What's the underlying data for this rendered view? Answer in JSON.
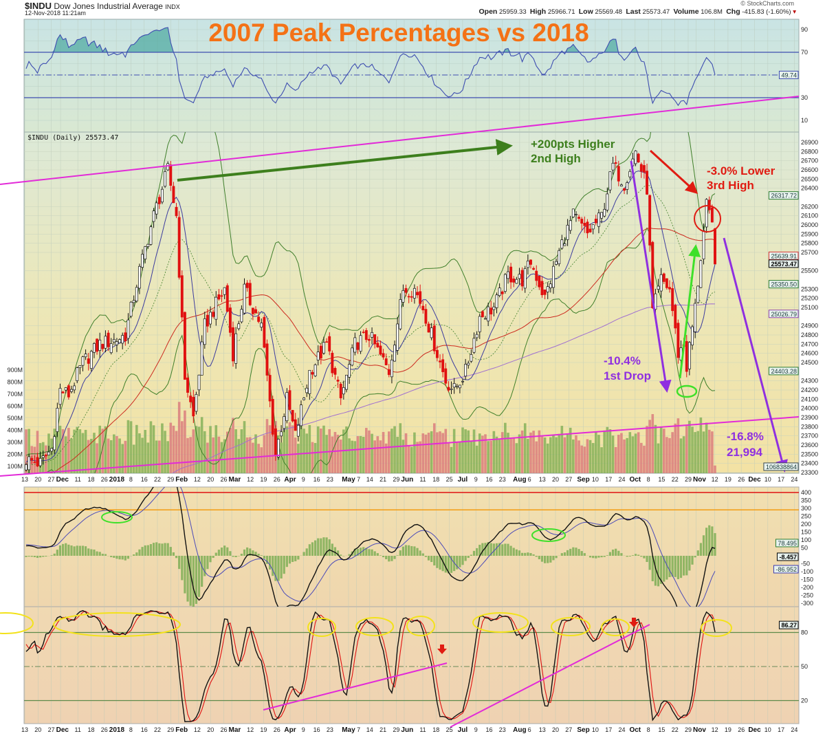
{
  "header": {
    "symbol": "$INDU",
    "name": "Dow Jones Industrial Average",
    "exchange": "INDX",
    "timestamp": "12-Nov-2018 11:21am",
    "watermark": "© StockCharts.com",
    "quote": {
      "open_label": "Open",
      "open": "25959.33",
      "high_label": "High",
      "high": "25966.71",
      "low_label": "Low",
      "low": "25569.48",
      "last_label": "Last",
      "last": "25573.47",
      "volume_label": "Volume",
      "volume": "106.8M",
      "chg_label": "Chg",
      "chg": "-415.83 (-1.60%)"
    }
  },
  "chart_data": {
    "type": "candlestick",
    "title": "2007 Peak Percentages vs 2018",
    "price_legend": "$INDU (Daily) 25573.47",
    "colors": {
      "title": "#f47216",
      "up_volume": "#7fae55",
      "down_volume": "#d9777a",
      "bands": "#3f7f2a",
      "ma_short": "#3b3b9e",
      "ma50": "#cc2a1f",
      "ma200": "#a070d0",
      "channel": "#e22ad8",
      "annotation_green": "#3d7f1d",
      "annotation_red": "#e01b12",
      "annotation_purple": "#8f2fe0"
    },
    "price": {
      "ylim": [
        23300,
        26900
      ],
      "last_bar": {
        "open": 25959.33,
        "high": 25966.71,
        "low": 25569.48,
        "close": 25573.47
      },
      "close_anchors": [
        [
          0,
          23440
        ],
        [
          5,
          23400
        ],
        [
          9,
          23560
        ],
        [
          12,
          24200
        ],
        [
          15,
          24150
        ],
        [
          20,
          24500
        ],
        [
          26,
          24700
        ],
        [
          32,
          24750
        ],
        [
          35,
          24800
        ],
        [
          40,
          25500
        ],
        [
          45,
          26100
        ],
        [
          50,
          26600
        ],
        [
          53,
          26100
        ],
        [
          54,
          25500
        ],
        [
          56,
          24350
        ],
        [
          59,
          23900
        ],
        [
          63,
          24900
        ],
        [
          70,
          25300
        ],
        [
          73,
          24600
        ],
        [
          77,
          25300
        ],
        [
          83,
          24900
        ],
        [
          88,
          23500
        ],
        [
          92,
          24100
        ],
        [
          95,
          23700
        ],
        [
          100,
          24400
        ],
        [
          106,
          24700
        ],
        [
          111,
          24100
        ],
        [
          116,
          24700
        ],
        [
          121,
          24800
        ],
        [
          128,
          24400
        ],
        [
          133,
          25300
        ],
        [
          137,
          25300
        ],
        [
          140,
          25100
        ],
        [
          148,
          24300
        ],
        [
          151,
          24200
        ],
        [
          155,
          24400
        ],
        [
          160,
          25000
        ],
        [
          165,
          25100
        ],
        [
          170,
          25450
        ],
        [
          175,
          25400
        ],
        [
          178,
          25600
        ],
        [
          183,
          25200
        ],
        [
          189,
          25800
        ],
        [
          193,
          26100
        ],
        [
          198,
          25900
        ],
        [
          203,
          26100
        ],
        [
          207,
          26650
        ],
        [
          211,
          26450
        ],
        [
          215,
          26800
        ],
        [
          219,
          26400
        ],
        [
          221,
          25050
        ],
        [
          224,
          25400
        ],
        [
          227,
          25300
        ],
        [
          230,
          24600
        ],
        [
          232,
          24690
        ],
        [
          233,
          24450
        ],
        [
          236,
          25100
        ],
        [
          240,
          26200
        ],
        [
          242,
          25990
        ],
        [
          243,
          25573.47
        ]
      ],
      "ticks": [
        26900,
        26800,
        26700,
        26600,
        26500,
        26400,
        26200,
        26100,
        26000,
        25900,
        25800,
        25700,
        25500,
        25300,
        25200,
        25100,
        24900,
        24800,
        24700,
        24600,
        24500,
        24300,
        24200,
        24100,
        24000,
        23900,
        23800,
        23700,
        23600,
        23500,
        23400,
        23300
      ],
      "badges": [
        {
          "label": "26317.72",
          "value": 26317.72,
          "color": "#2e7d32"
        },
        {
          "label": "25639.91",
          "value": 25660,
          "color": "#d32f2f"
        },
        {
          "label": "25573.47",
          "value": 25573.47,
          "color": "#000000"
        },
        {
          "label": "25350.50",
          "value": 25350.5,
          "color": "#2e7d32"
        },
        {
          "label": "25026.79",
          "value": 25026.79,
          "color": "#8e44ad"
        },
        {
          "label": "24403.28",
          "value": 24403.28,
          "color": "#2e7d32"
        },
        {
          "label": "106838864",
          "value": 23360,
          "color": "#37474f"
        }
      ]
    },
    "volume": {
      "ticks": [
        "900M",
        "800M",
        "700M",
        "600M",
        "500M",
        "400M",
        "300M",
        "200M",
        "100M"
      ],
      "tick_values": [
        900,
        800,
        700,
        600,
        500,
        400,
        300,
        200,
        100
      ],
      "last": 106.8
    },
    "rsi": {
      "period": 14,
      "levels": [
        70,
        30
      ],
      "mid": 50,
      "ticks": [
        90,
        70,
        30,
        10
      ],
      "badge": "49.74",
      "badge_value": 49.74
    },
    "macd": {
      "params": [
        12,
        26,
        9
      ],
      "ticks": [
        400,
        350,
        300,
        250,
        200,
        150,
        100,
        50,
        -50,
        -100,
        -150,
        -200,
        -250,
        -300
      ],
      "lines": [
        400,
        290
      ],
      "badges": [
        {
          "label": "78.495",
          "value": 78.5,
          "color": "#2e7d32"
        },
        {
          "label": "-8.457",
          "value": -8.5,
          "color": "#000000"
        },
        {
          "label": "-86.952",
          "value": -87,
          "color": "#3b3bb0"
        }
      ]
    },
    "stochastic": {
      "params": [
        14,
        3
      ],
      "levels": [
        80,
        20
      ],
      "mid": 50,
      "ticks": [
        80,
        50,
        20
      ],
      "badge": "86.27",
      "badge_value": 86.27
    },
    "x_ticks": [
      {
        "label": "13",
        "week": 0
      },
      {
        "label": "20",
        "week": 1
      },
      {
        "label": "27",
        "week": 2
      },
      {
        "label": "Dec",
        "week": 2.7,
        "bold": true
      },
      {
        "label": "11",
        "week": 4
      },
      {
        "label": "18",
        "week": 5
      },
      {
        "label": "26",
        "week": 6
      },
      {
        "label": "2018",
        "week": 6.9,
        "bold": true
      },
      {
        "label": "8",
        "week": 8
      },
      {
        "label": "16",
        "week": 9
      },
      {
        "label": "22",
        "week": 10
      },
      {
        "label": "29",
        "week": 11
      },
      {
        "label": "Feb",
        "week": 11.6,
        "bold": true
      },
      {
        "label": "12",
        "week": 13
      },
      {
        "label": "20",
        "week": 14
      },
      {
        "label": "26",
        "week": 15
      },
      {
        "label": "Mar",
        "week": 15.6,
        "bold": true
      },
      {
        "label": "12",
        "week": 17
      },
      {
        "label": "19",
        "week": 18
      },
      {
        "label": "26",
        "week": 19
      },
      {
        "label": "Apr",
        "week": 20,
        "bold": true
      },
      {
        "label": "9",
        "week": 21
      },
      {
        "label": "16",
        "week": 22
      },
      {
        "label": "23",
        "week": 23
      },
      {
        "label": "May",
        "week": 24.4,
        "bold": true
      },
      {
        "label": "7",
        "week": 25
      },
      {
        "label": "14",
        "week": 26
      },
      {
        "label": "21",
        "week": 27
      },
      {
        "label": "29",
        "week": 28
      },
      {
        "label": "Jun",
        "week": 28.6,
        "bold": true
      },
      {
        "label": "11",
        "week": 30
      },
      {
        "label": "18",
        "week": 31
      },
      {
        "label": "25",
        "week": 32
      },
      {
        "label": "Jul",
        "week": 33,
        "bold": true
      },
      {
        "label": "9",
        "week": 34
      },
      {
        "label": "16",
        "week": 35
      },
      {
        "label": "23",
        "week": 36
      },
      {
        "label": "Aug",
        "week": 37.3,
        "bold": true
      },
      {
        "label": "6",
        "week": 38
      },
      {
        "label": "13",
        "week": 39
      },
      {
        "label": "20",
        "week": 40
      },
      {
        "label": "27",
        "week": 41
      },
      {
        "label": "Sep",
        "week": 42.1,
        "bold": true
      },
      {
        "label": "10",
        "week": 43
      },
      {
        "label": "17",
        "week": 44
      },
      {
        "label": "24",
        "week": 45
      },
      {
        "label": "Oct",
        "week": 46,
        "bold": true
      },
      {
        "label": "8",
        "week": 47
      },
      {
        "label": "15",
        "week": 48
      },
      {
        "label": "22",
        "week": 49
      },
      {
        "label": "29",
        "week": 50
      },
      {
        "label": "Nov",
        "week": 50.6,
        "bold": true
      },
      {
        "label": "12",
        "week": 52
      },
      {
        "label": "19",
        "week": 53
      },
      {
        "label": "26",
        "week": 54
      },
      {
        "label": "Dec",
        "week": 55,
        "bold": true
      },
      {
        "label": "10",
        "week": 56
      },
      {
        "label": "17",
        "week": 57
      },
      {
        "label": "24",
        "week": 58
      }
    ],
    "annotations": {
      "higher_line1": "+200pts Higher",
      "higher_line2": "2nd High",
      "lower_line1": "-3.0% Lower",
      "lower_line2": "3rd High",
      "drop_line1": "-10.4%",
      "drop_line2": "1st Drop",
      "target_line1": "-16.8%",
      "target_line2": "21,994"
    }
  }
}
